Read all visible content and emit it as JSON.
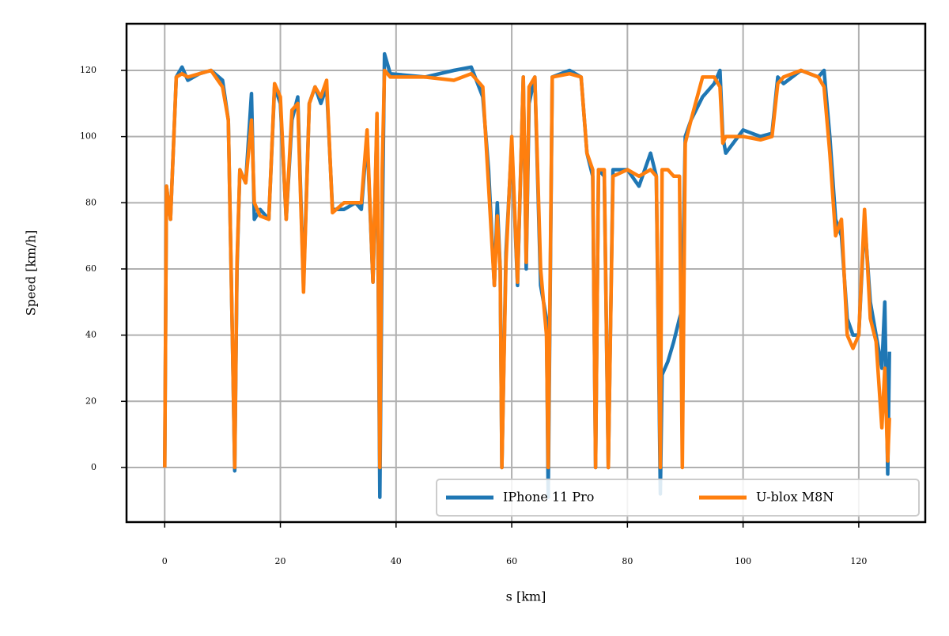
{
  "chart_data": {
    "type": "line",
    "xlabel": "s [km]",
    "ylabel": "Speed [km/h]",
    "x": [
      0,
      0.3,
      1,
      2,
      3,
      4,
      6,
      8,
      10,
      11,
      11.7,
      12.1,
      12.5,
      13,
      14,
      15,
      15.5,
      16.5,
      18,
      19,
      20,
      21,
      22,
      23,
      24,
      25,
      26,
      27,
      28,
      29,
      31,
      33,
      34,
      35,
      36,
      36.7,
      37.2,
      37.6,
      38,
      39,
      45,
      50,
      53,
      55,
      56,
      57,
      57.5,
      58,
      58.3,
      59,
      60,
      61,
      62,
      62.5,
      63,
      64,
      65,
      66,
      66.3,
      67,
      70,
      72,
      73,
      74,
      74.5,
      75,
      76,
      76.7,
      77.5,
      80,
      82,
      84,
      85,
      85.7,
      86,
      87,
      88,
      89,
      89.5,
      90,
      91,
      93,
      95,
      96,
      96.5,
      97,
      100,
      103,
      105,
      106,
      107,
      110,
      113,
      114,
      115,
      116,
      117,
      118,
      119,
      120,
      121,
      122,
      123,
      124,
      124.5,
      125,
      125.3
    ],
    "series": [
      {
        "name": "IPhone 11 Pro",
        "color": "#1f77b4",
        "values": [
          0,
          85,
          75,
          118,
          121,
          117,
          119,
          120,
          117,
          105,
          40,
          -1,
          60,
          90,
          86,
          113,
          75,
          78,
          75,
          115,
          110,
          75,
          105,
          112,
          55,
          110,
          115,
          110,
          115,
          78,
          78,
          80,
          78,
          100,
          56,
          105,
          -9,
          70,
          125,
          119,
          118,
          120,
          121,
          112,
          90,
          55,
          80,
          60,
          0,
          65,
          98,
          55,
          118,
          60,
          110,
          118,
          55,
          45,
          -9,
          118,
          120,
          118,
          95,
          88,
          0,
          90,
          88,
          0,
          90,
          90,
          85,
          95,
          88,
          -8,
          28,
          32,
          38,
          45,
          48,
          100,
          105,
          112,
          116,
          120,
          100,
          95,
          102,
          100,
          101,
          118,
          116,
          120,
          118,
          120,
          100,
          75,
          70,
          45,
          40,
          40,
          75,
          50,
          40,
          30,
          50,
          -2,
          35
        ]
      },
      {
        "name": "U-blox M8N",
        "color": "#ff7f0e",
        "values": [
          0,
          85,
          75,
          118,
          119,
          118,
          119,
          120,
          115,
          105,
          40,
          0,
          62,
          90,
          86,
          105,
          80,
          76,
          75,
          116,
          112,
          75,
          108,
          110,
          53,
          110,
          115,
          112,
          117,
          77,
          80,
          80,
          80,
          102,
          56,
          107,
          0,
          90,
          120,
          118,
          118,
          117,
          119,
          115,
          85,
          55,
          76,
          60,
          0,
          62,
          100,
          56,
          118,
          62,
          115,
          118,
          60,
          40,
          0,
          118,
          119,
          118,
          95,
          90,
          0,
          90,
          90,
          0,
          88,
          90,
          88,
          90,
          88,
          0,
          90,
          90,
          88,
          88,
          0,
          98,
          105,
          118,
          118,
          115,
          98,
          100,
          100,
          99,
          100,
          116,
          118,
          120,
          118,
          115,
          95,
          70,
          75,
          40,
          36,
          40,
          78,
          45,
          38,
          12,
          30,
          2,
          15
        ]
      }
    ],
    "xlim": [
      -6.6,
      131.5
    ],
    "ylim": [
      -16.5,
      134.1
    ],
    "xticks": [
      0,
      20,
      40,
      60,
      80,
      100,
      120
    ],
    "yticks": [
      0,
      20,
      40,
      60,
      80,
      100,
      120
    ],
    "grid": true,
    "legend": "lower right"
  }
}
